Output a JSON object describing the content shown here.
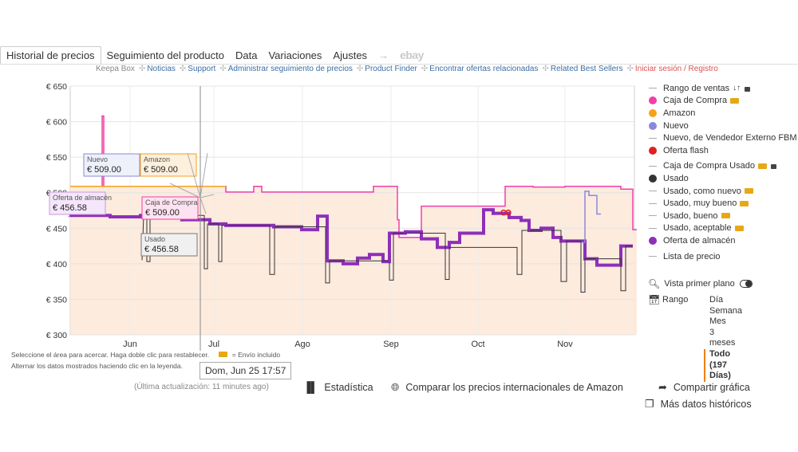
{
  "tabs": [
    {
      "label": "Historial de precios",
      "active": true
    },
    {
      "label": "Seguimiento del producto"
    },
    {
      "label": "Data"
    },
    {
      "label": "Variaciones"
    },
    {
      "label": "Ajustes"
    }
  ],
  "tab_arrow": "→",
  "tab_ebay": "ebay",
  "links": [
    {
      "label": "Keepa Box",
      "style": "grey"
    },
    {
      "label": "Noticias"
    },
    {
      "label": "Support"
    },
    {
      "label": "Administrar seguimiento de precios"
    },
    {
      "label": "Product Finder"
    },
    {
      "label": "Encontrar ofertas relacionadas"
    },
    {
      "label": "Related Best Sellers"
    },
    {
      "label": "Iniciar sesión / Registro",
      "style": "red"
    }
  ],
  "link_separator": "✣",
  "legend": [
    {
      "label": "Rango de ventas",
      "type": "line",
      "color": "#aaaaaa",
      "sort_icon": "↓↑",
      "lock": true
    },
    {
      "label": "Caja de Compra",
      "type": "square",
      "color": "#f03fa8",
      "truck": true
    },
    {
      "label": "Amazon",
      "type": "dot",
      "color": "#f4a21b"
    },
    {
      "label": "Nuevo",
      "type": "square",
      "color": "#8a8ad8"
    },
    {
      "label": "Nuevo, de Vendedor Externo FBM",
      "type": "line",
      "color": "#aaaaaa"
    },
    {
      "label": "Oferta flash",
      "type": "dot",
      "color": "#e02020"
    },
    {
      "label": "Caja de Compra Usado",
      "type": "line",
      "color": "#aaaaaa",
      "truck": true,
      "lock": true,
      "gap": true
    },
    {
      "label": "Usado",
      "type": "dot",
      "color": "#333333"
    },
    {
      "label": "Usado, como nuevo",
      "type": "line",
      "color": "#aaaaaa",
      "truck": true
    },
    {
      "label": "Usado, muy bueno",
      "type": "line",
      "color": "#aaaaaa",
      "truck": true
    },
    {
      "label": "Usado, bueno",
      "type": "line",
      "color": "#aaaaaa",
      "truck": true
    },
    {
      "label": "Usado, aceptable",
      "type": "line",
      "color": "#aaaaaa",
      "truck": true
    },
    {
      "label": "Oferta de almacén",
      "type": "dot",
      "color": "#8e2fb8"
    },
    {
      "label": "Lista de precio",
      "type": "line",
      "color": "#aaaaaa",
      "gap": true
    }
  ],
  "zoom_label": "Vista primer plano",
  "range": {
    "label": "Rango",
    "options": [
      {
        "label": "Día"
      },
      {
        "label": "Semana"
      },
      {
        "label": "Mes"
      },
      {
        "label": "3 meses"
      },
      {
        "label": "Todo (197 Días)",
        "selected": true
      }
    ]
  },
  "notes": {
    "line1": "Seleccione el área para acercar. Haga doble clic para restablecer.",
    "shipping": "= Envío incluido",
    "line2": "Alternar los datos mostrados haciendo clic en la leyenda."
  },
  "tooltip_date": "Dom, Jun 25 17:57",
  "last_update": "(Última actualización: 11 minutes ago)",
  "actions": {
    "stats": "Estadística",
    "compare": "Comparar los precios internacionales de Amazon",
    "share": "Compartir gráfica",
    "history": "Más datos históricos"
  },
  "chart_data": {
    "type": "line",
    "y_ticks": [
      "€ 650",
      "€ 600",
      "€ 550",
      "€ 500",
      "€ 450",
      "€ 400",
      "€ 350",
      "€ 300"
    ],
    "y_values": [
      650,
      600,
      550,
      500,
      450,
      400,
      350,
      300
    ],
    "ylim": [
      300,
      650
    ],
    "x_ticks": [
      "Jun",
      "Jul",
      "Ago",
      "Sep",
      "Oct",
      "Nov"
    ],
    "grid": true,
    "legend_position": "right",
    "tooltips": [
      {
        "series": "Nuevo",
        "value": "€ 509.00",
        "color": "#8a8ad8",
        "bg": "#eef0fb"
      },
      {
        "series": "Amazon",
        "value": "€ 509.00",
        "color": "#f4a21b",
        "bg": "#fdf0dc"
      },
      {
        "series": "Oferta de almacén",
        "value": "€ 456.58",
        "color": "#c59ad8",
        "bg": "#f5e6fb"
      },
      {
        "series": "Caja de Compra",
        "value": "€ 509.00",
        "color": "#f03fa8",
        "bg": "#fde3f1",
        "truck": true
      },
      {
        "series": "Usado",
        "value": "€ 456.58",
        "color": "#777777",
        "bg": "#f0f0f0"
      }
    ],
    "series": [
      {
        "name": "Caja de Compra",
        "color": "#f03fa8",
        "points": [
          [
            0,
            509
          ],
          [
            40,
            509
          ],
          [
            40,
            608
          ],
          [
            42,
            608
          ],
          [
            42,
            509
          ],
          [
            195,
            509
          ],
          [
            195,
            501
          ],
          [
            230,
            501
          ],
          [
            230,
            509
          ],
          [
            240,
            509
          ],
          [
            240,
            501
          ],
          [
            380,
            501
          ],
          [
            380,
            509
          ],
          [
            410,
            509
          ],
          [
            410,
            462
          ],
          [
            412,
            462
          ],
          [
            412,
            437
          ],
          [
            440,
            437
          ],
          [
            440,
            481
          ],
          [
            545,
            481
          ],
          [
            545,
            509
          ],
          [
            580,
            509
          ],
          [
            580,
            508
          ],
          [
            620,
            508
          ],
          [
            620,
            509
          ],
          [
            660,
            509
          ],
          [
            660,
            509
          ],
          [
            670,
            509
          ],
          [
            670,
            509
          ],
          [
            690,
            509
          ],
          [
            690,
            505
          ],
          [
            705,
            505
          ],
          [
            705,
            448
          ],
          [
            710,
            448
          ]
        ]
      },
      {
        "name": "Oferta de almacén",
        "color": "#8e2fb8",
        "points": [
          [
            0,
            468
          ],
          [
            50,
            468
          ],
          [
            50,
            466
          ],
          [
            88,
            466
          ],
          [
            88,
            468
          ],
          [
            140,
            468
          ],
          [
            140,
            462
          ],
          [
            175,
            462
          ],
          [
            175,
            456
          ],
          [
            195,
            456
          ],
          [
            195,
            454
          ],
          [
            255,
            454
          ],
          [
            255,
            452
          ],
          [
            290,
            452
          ],
          [
            290,
            448
          ],
          [
            310,
            448
          ],
          [
            310,
            467
          ],
          [
            322,
            467
          ],
          [
            322,
            404
          ],
          [
            342,
            404
          ],
          [
            342,
            400
          ],
          [
            360,
            400
          ],
          [
            360,
            408
          ],
          [
            375,
            408
          ],
          [
            375,
            413
          ],
          [
            392,
            413
          ],
          [
            392,
            403
          ],
          [
            400,
            403
          ],
          [
            400,
            443
          ],
          [
            420,
            443
          ],
          [
            420,
            445
          ],
          [
            440,
            445
          ],
          [
            440,
            435
          ],
          [
            460,
            435
          ],
          [
            460,
            423
          ],
          [
            475,
            423
          ],
          [
            475,
            430
          ],
          [
            488,
            430
          ],
          [
            488,
            443
          ],
          [
            518,
            443
          ],
          [
            518,
            476
          ],
          [
            530,
            476
          ],
          [
            530,
            471
          ],
          [
            550,
            471
          ],
          [
            550,
            465
          ],
          [
            565,
            465
          ],
          [
            565,
            461
          ],
          [
            575,
            461
          ],
          [
            575,
            447
          ],
          [
            590,
            447
          ],
          [
            590,
            450
          ],
          [
            605,
            450
          ],
          [
            605,
            437
          ],
          [
            615,
            437
          ],
          [
            615,
            432
          ],
          [
            645,
            432
          ],
          [
            645,
            407
          ],
          [
            660,
            407
          ],
          [
            660,
            398
          ],
          [
            690,
            398
          ],
          [
            690,
            425
          ],
          [
            705,
            425
          ]
        ]
      },
      {
        "name": "Usado",
        "color": "#333333",
        "points": [
          [
            90,
            405
          ],
          [
            92,
            468
          ],
          [
            96,
            468
          ],
          [
            96,
            403
          ],
          [
            100,
            403
          ],
          [
            100,
            468
          ],
          [
            168,
            468
          ],
          [
            168,
            393
          ],
          [
            172,
            393
          ],
          [
            172,
            456
          ],
          [
            186,
            456
          ],
          [
            186,
            403
          ],
          [
            190,
            403
          ],
          [
            190,
            454
          ],
          [
            250,
            454
          ],
          [
            250,
            385
          ],
          [
            256,
            385
          ],
          [
            256,
            452
          ],
          [
            320,
            452
          ],
          [
            320,
            373
          ],
          [
            325,
            373
          ],
          [
            325,
            404
          ],
          [
            400,
            404
          ],
          [
            400,
            377
          ],
          [
            405,
            377
          ],
          [
            405,
            443
          ],
          [
            470,
            443
          ],
          [
            470,
            378
          ],
          [
            475,
            378
          ],
          [
            475,
            423
          ],
          [
            560,
            423
          ],
          [
            560,
            385
          ],
          [
            566,
            385
          ],
          [
            566,
            447
          ],
          [
            615,
            447
          ],
          [
            615,
            375
          ],
          [
            622,
            375
          ],
          [
            622,
            432
          ],
          [
            640,
            432
          ],
          [
            640,
            360
          ],
          [
            645,
            360
          ],
          [
            645,
            407
          ],
          [
            690,
            407
          ],
          [
            690,
            362
          ],
          [
            696,
            362
          ],
          [
            696,
            425
          ],
          [
            705,
            425
          ]
        ]
      },
      {
        "name": "Nuevo",
        "color": "#8a8ad8",
        "points": [
          [
            640,
            430
          ],
          [
            645,
            430
          ],
          [
            645,
            502
          ],
          [
            650,
            502
          ],
          [
            650,
            496
          ],
          [
            660,
            496
          ],
          [
            660,
            470
          ],
          [
            665,
            470
          ]
        ]
      },
      {
        "name": "Amazon",
        "color": "#f4a21b",
        "points": [
          [
            0,
            509
          ],
          [
            195,
            509
          ]
        ]
      }
    ],
    "oferta_flash": [
      [
        543,
        472
      ],
      [
        549,
        472
      ]
    ]
  }
}
